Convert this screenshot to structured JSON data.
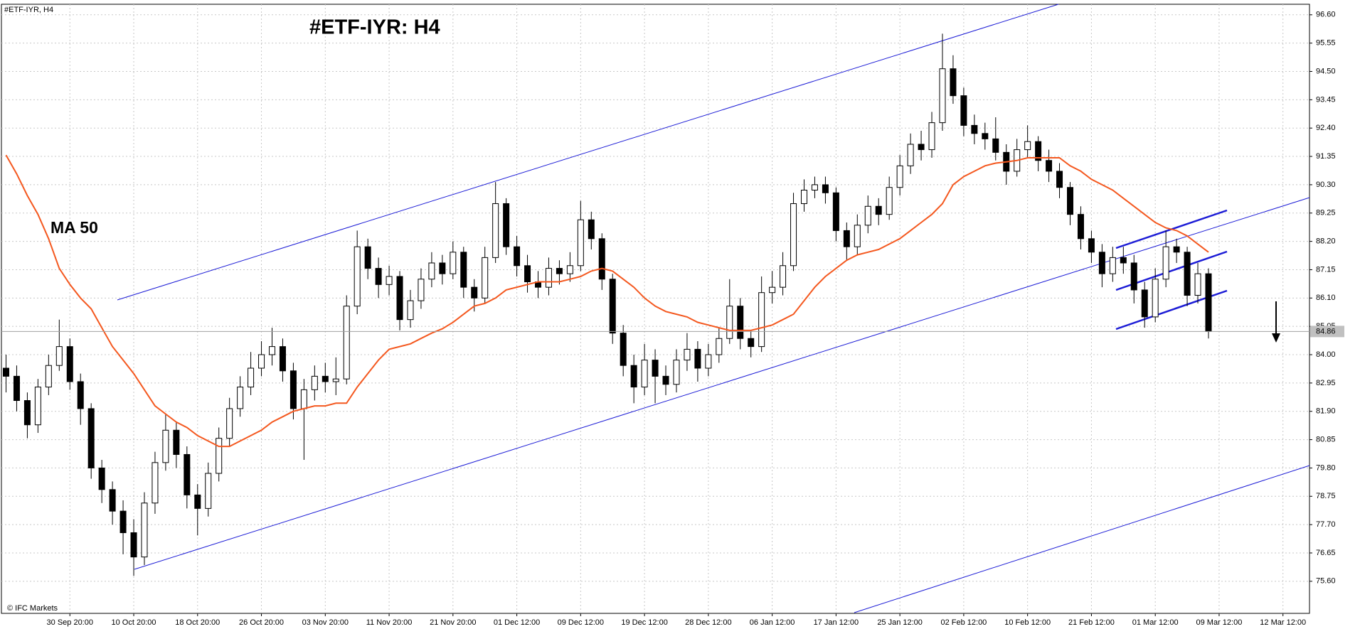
{
  "chart_data": {
    "type": "candlestick",
    "title": "#ETF-IYR: H4",
    "subtitle": "#ETF-IYR, H4",
    "source": "© IFC Markets",
    "up_color": "#ffffff",
    "down_color": "#000000",
    "grid": true,
    "ylim": [
      74.41,
      96.99
    ],
    "yticks": [
      {
        "value": 96.6,
        "label": "96.60"
      },
      95.55,
      {
        "value": 94.5,
        "label": "94.50"
      },
      93.45,
      {
        "value": 92.4,
        "label": "92.40"
      },
      91.35,
      {
        "value": 90.3,
        "label": "90.30"
      },
      89.25,
      {
        "value": 88.2,
        "label": "88.20"
      },
      87.15,
      {
        "value": 86.1,
        "label": "86.10"
      },
      85.05,
      {
        "value": 84,
        "label": "84.00"
      },
      82.95,
      {
        "value": 81.9,
        "label": "81.90"
      },
      80.85,
      {
        "value": 79.8,
        "label": "79.80"
      },
      78.75,
      {
        "value": 77.7,
        "label": "77.70"
      },
      76.65,
      {
        "value": 75.6,
        "label": "75.60"
      }
    ],
    "current_price": 84.86,
    "categories": [
      null,
      null,
      null,
      null,
      null,
      null,
      "30 Sep 20:00",
      null,
      null,
      null,
      null,
      null,
      "10 Oct 20:00",
      null,
      null,
      null,
      null,
      null,
      "18 Oct 20:00",
      null,
      null,
      null,
      null,
      null,
      "26 Oct 20:00",
      null,
      null,
      null,
      null,
      null,
      "03 Nov 20:00",
      null,
      null,
      null,
      null,
      null,
      "11 Nov 20:00",
      null,
      null,
      null,
      null,
      null,
      "21 Nov 20:00",
      null,
      null,
      null,
      null,
      null,
      "01 Dec 12:00",
      null,
      null,
      null,
      null,
      null,
      "09 Dec 12:00",
      null,
      null,
      null,
      null,
      null,
      "19 Dec 12:00",
      null,
      null,
      null,
      null,
      null,
      "28 Dec 12:00",
      null,
      null,
      null,
      null,
      null,
      "06 Jan 12:00",
      null,
      null,
      null,
      null,
      null,
      "17 Jan 12:00",
      null,
      null,
      null,
      null,
      null,
      "25 Jan 12:00",
      null,
      null,
      null,
      null,
      null,
      "02 Feb 12:00",
      null,
      null,
      null,
      null,
      null,
      "10 Feb 12:00",
      null,
      null,
      null,
      null,
      null,
      "21 Feb 12:00",
      null,
      null,
      null,
      null,
      null,
      "01 Mar 12:00",
      null,
      null,
      null,
      null,
      null,
      "09 Mar 12:00",
      null,
      null,
      null,
      null,
      null,
      "12 Mar 12:00",
      null,
      null
    ],
    "open": [
      83.5,
      83.2,
      82.3,
      81.4,
      82.8,
      83.6,
      84.3,
      83.0,
      82.0,
      79.8,
      79.0,
      78.2,
      77.4,
      76.5,
      78.5,
      80.0,
      81.2,
      80.3,
      78.8,
      78.3,
      79.6,
      80.9,
      82.0,
      82.8,
      83.5,
      84.0,
      84.3,
      83.4,
      82.0,
      82.7,
      83.2,
      83.0,
      83.1,
      85.8,
      88.0,
      87.2,
      86.6,
      86.9,
      85.3,
      86.0,
      86.8,
      87.4,
      87.0,
      87.8,
      86.5,
      86.1,
      87.6,
      89.6,
      88.0,
      87.3,
      86.7,
      86.5,
      87.2,
      87.0,
      87.3,
      89.0,
      88.3,
      86.8,
      84.8,
      83.6,
      82.8,
      83.8,
      83.2,
      82.9,
      83.8,
      84.2,
      83.5,
      84.0,
      84.6,
      85.8,
      84.6,
      84.3,
      86.3,
      86.5,
      87.3,
      89.6,
      90.1,
      90.3,
      90.0,
      88.6,
      88.0,
      88.8,
      89.5,
      89.2,
      90.2,
      91.0,
      91.8,
      91.6,
      92.6,
      94.6,
      93.6,
      92.5,
      92.2,
      92.0,
      91.5,
      90.8,
      91.6,
      91.9,
      91.2,
      90.8,
      90.2,
      89.2,
      88.3,
      87.8,
      87.0,
      87.6,
      87.4,
      86.4,
      85.4,
      86.8,
      88.0,
      87.8,
      86.2,
      87.0,
      null,
      null,
      null,
      null,
      null,
      null,
      null,
      null,
      null
    ],
    "high": [
      84.0,
      83.6,
      82.6,
      83.1,
      84.0,
      85.3,
      84.6,
      83.3,
      82.2,
      80.1,
      79.3,
      78.6,
      77.9,
      78.9,
      80.4,
      81.8,
      81.5,
      80.6,
      79.2,
      80.0,
      81.3,
      82.4,
      83.2,
      84.1,
      84.5,
      85.0,
      84.6,
      83.7,
      83.1,
      83.6,
      83.7,
      83.9,
      86.2,
      88.6,
      88.3,
      87.6,
      87.3,
      87.1,
      86.4,
      87.2,
      87.8,
      87.7,
      88.2,
      88.0,
      86.8,
      88.0,
      90.4,
      89.8,
      88.4,
      87.7,
      87.1,
      87.6,
      87.5,
      87.8,
      89.7,
      89.3,
      88.5,
      87.0,
      85.1,
      84.0,
      84.4,
      84.2,
      83.6,
      84.2,
      84.8,
      84.5,
      84.4,
      85.0,
      86.8,
      86.1,
      84.9,
      86.9,
      87.1,
      87.8,
      90.0,
      90.5,
      90.6,
      90.6,
      90.2,
      88.9,
      89.2,
      89.9,
      89.8,
      90.6,
      91.4,
      92.2,
      92.3,
      93.0,
      95.9,
      95.1,
      93.9,
      92.9,
      92.6,
      92.8,
      91.8,
      92.0,
      92.5,
      92.1,
      91.6,
      91.1,
      90.4,
      89.5,
      88.6,
      88.1,
      88.0,
      88.0,
      87.7,
      86.7,
      87.2,
      88.6,
      88.3,
      88.0,
      87.4,
      87.2,
      null,
      null,
      null,
      null,
      null,
      null,
      null,
      null,
      null
    ],
    "low": [
      82.6,
      81.9,
      80.9,
      81.1,
      82.5,
      83.4,
      82.7,
      81.4,
      79.4,
      78.5,
      77.7,
      76.6,
      75.8,
      76.2,
      78.1,
      79.7,
      79.8,
      78.3,
      77.3,
      78.0,
      79.3,
      80.6,
      81.7,
      82.5,
      83.2,
      83.6,
      83.0,
      81.6,
      80.1,
      82.3,
      82.6,
      82.5,
      82.9,
      85.5,
      86.8,
      86.1,
      86.2,
      84.9,
      85.0,
      85.7,
      86.5,
      86.6,
      86.8,
      86.1,
      85.6,
      85.9,
      87.4,
      87.7,
      86.9,
      86.3,
      86.1,
      86.2,
      86.6,
      86.7,
      87.1,
      87.9,
      86.4,
      84.4,
      83.2,
      82.2,
      82.5,
      82.2,
      82.5,
      82.6,
      83.4,
      83.0,
      83.2,
      83.7,
      84.4,
      84.2,
      83.9,
      84.1,
      85.9,
      86.2,
      87.1,
      89.3,
      89.8,
      89.6,
      88.2,
      87.5,
      87.7,
      88.5,
      88.8,
      89.0,
      89.9,
      90.7,
      91.2,
      91.3,
      92.3,
      93.3,
      92.1,
      91.8,
      91.6,
      91.2,
      90.3,
      90.6,
      91.3,
      90.8,
      90.4,
      89.8,
      88.8,
      87.9,
      87.4,
      86.5,
      86.7,
      87.0,
      85.9,
      85.0,
      85.2,
      86.5,
      87.4,
      85.8,
      85.9,
      84.6,
      null,
      null,
      null,
      null,
      null,
      null,
      null,
      null,
      null
    ],
    "close": [
      83.2,
      82.3,
      81.4,
      82.8,
      83.6,
      84.3,
      83.0,
      82.0,
      79.8,
      79.0,
      78.2,
      77.4,
      76.5,
      78.5,
      80.0,
      81.2,
      80.3,
      78.8,
      78.3,
      79.6,
      80.9,
      82.0,
      82.8,
      83.5,
      84.0,
      84.3,
      83.4,
      82.0,
      82.7,
      83.2,
      83.0,
      83.1,
      85.8,
      88.0,
      87.2,
      86.6,
      86.9,
      85.3,
      86.0,
      86.8,
      87.4,
      87.0,
      87.8,
      86.5,
      86.1,
      87.6,
      89.6,
      88.0,
      87.3,
      86.7,
      86.5,
      87.2,
      87.0,
      87.3,
      89.0,
      88.3,
      86.8,
      84.8,
      83.6,
      82.8,
      83.8,
      83.2,
      82.9,
      83.8,
      84.2,
      83.5,
      84.0,
      84.6,
      85.8,
      84.6,
      84.3,
      86.3,
      86.5,
      87.3,
      89.6,
      90.1,
      90.3,
      90.0,
      88.6,
      88.0,
      88.8,
      89.5,
      89.2,
      90.2,
      91.0,
      91.8,
      91.6,
      92.6,
      94.6,
      93.6,
      92.5,
      92.2,
      92.0,
      91.5,
      90.8,
      91.6,
      91.9,
      91.2,
      90.8,
      90.2,
      89.2,
      88.3,
      87.8,
      87.0,
      87.6,
      87.4,
      86.4,
      85.4,
      86.8,
      88.0,
      87.8,
      86.2,
      87.0,
      84.86,
      null,
      null,
      null,
      null,
      null,
      null,
      null,
      null,
      null
    ],
    "ma": {
      "name": "MA 50",
      "color": "#f4581f",
      "values": [
        91.4,
        90.7,
        89.9,
        89.2,
        88.3,
        87.2,
        86.6,
        86.1,
        85.7,
        85.0,
        84.3,
        83.8,
        83.3,
        82.7,
        82.1,
        81.8,
        81.5,
        81.3,
        81.0,
        80.8,
        80.6,
        80.6,
        80.8,
        81.0,
        81.2,
        81.5,
        81.7,
        81.9,
        82.0,
        82.1,
        82.1,
        82.2,
        82.2,
        82.8,
        83.3,
        83.8,
        84.2,
        84.3,
        84.4,
        84.6,
        84.8,
        84.96,
        85.2,
        85.5,
        85.8,
        85.9,
        86.1,
        86.4,
        86.5,
        86.6,
        86.7,
        86.7,
        86.7,
        86.8,
        86.9,
        87.1,
        87.2,
        87.1,
        86.8,
        86.5,
        86.1,
        85.8,
        85.6,
        85.5,
        85.4,
        85.2,
        85.1,
        85.0,
        84.9,
        84.9,
        84.9,
        85.0,
        85.1,
        85.3,
        85.5,
        86.0,
        86.5,
        86.9,
        87.2,
        87.5,
        87.7,
        87.8,
        87.9,
        88.1,
        88.3,
        88.6,
        88.9,
        89.2,
        89.6,
        90.3,
        90.6,
        90.8,
        91.0,
        91.1,
        91.15,
        91.2,
        91.3,
        91.3,
        91.3,
        91.3,
        91.0,
        90.8,
        90.5,
        90.3,
        90.1,
        89.8,
        89.5,
        89.2,
        88.9,
        88.7,
        88.6,
        88.4,
        88.1,
        87.8,
        null,
        null,
        null,
        null,
        null,
        null,
        null,
        null,
        null
      ]
    }
  }
}
